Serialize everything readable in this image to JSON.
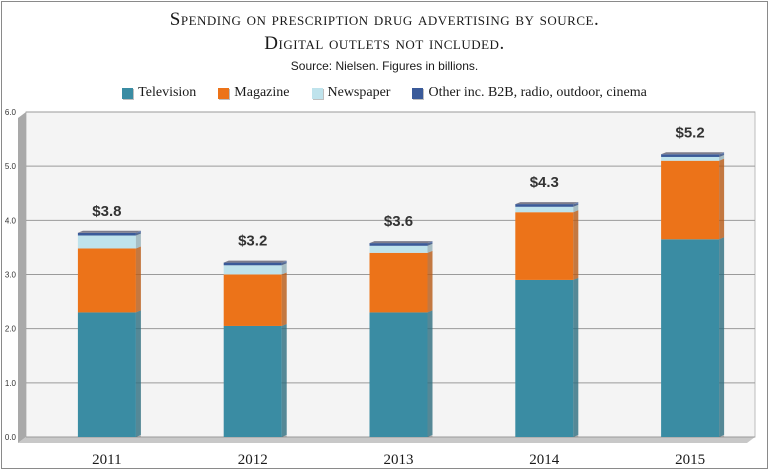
{
  "chart_data": {
    "type": "bar",
    "stacked": true,
    "title_line1": "Spending on prescription drug advertising by source.",
    "title_line2": "Digital outlets not included.",
    "subtitle": "Source: Nielsen. Figures in billions.",
    "categories": [
      "2011",
      "2012",
      "2013",
      "2014",
      "2015"
    ],
    "series": [
      {
        "name": "Television",
        "color": "#3a8ca3",
        "values": [
          2.3,
          2.05,
          2.3,
          2.9,
          3.65
        ]
      },
      {
        "name": "Magazine",
        "color": "#ec7319",
        "values": [
          1.18,
          0.95,
          1.1,
          1.25,
          1.45
        ]
      },
      {
        "name": "Newspaper",
        "color": "#bfe3ec",
        "values": [
          0.24,
          0.17,
          0.13,
          0.1,
          0.07
        ]
      },
      {
        "name": "Other inc. B2B, radio, outdoor, cinema",
        "color": "#3a5a99",
        "values": [
          0.05,
          0.05,
          0.05,
          0.05,
          0.05
        ]
      }
    ],
    "totals": [
      "$3.8",
      "$3.2",
      "$3.6",
      "$4.3",
      "$5.2"
    ],
    "yticks": [
      "0.0",
      "1.0",
      "2.0",
      "3.0",
      "4.0",
      "5.0",
      "6.0"
    ],
    "ylim": [
      0,
      6
    ],
    "grid": true,
    "legend_position": "top"
  }
}
